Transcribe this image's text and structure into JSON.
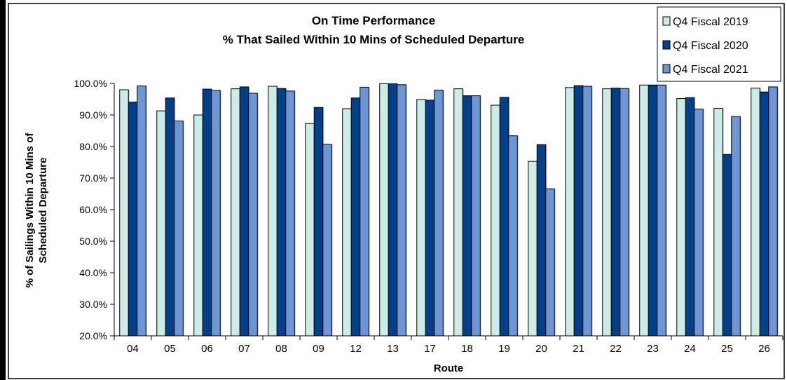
{
  "chart_data": {
    "type": "bar",
    "title": "On Time Performance",
    "subtitle": "% That Sailed Within 10 Mins of Scheduled Departure",
    "xlabel": "Route",
    "ylabel_line1": "% of Sailings Within 10 Mins of",
    "ylabel_line2": "Scheduled Departure",
    "ylim": [
      20,
      100
    ],
    "yticks": [
      20,
      30,
      40,
      50,
      60,
      70,
      80,
      90,
      100
    ],
    "ytick_labels": [
      "20.0%",
      "30.0%",
      "40.0%",
      "50.0%",
      "60.0%",
      "70.0%",
      "80.0%",
      "90.0%",
      "100.0%"
    ],
    "grid": false,
    "legend_position": "top-right",
    "categories": [
      "04",
      "05",
      "06",
      "07",
      "08",
      "09",
      "12",
      "13",
      "17",
      "18",
      "19",
      "20",
      "21",
      "22",
      "23",
      "24",
      "25",
      "26"
    ],
    "series": [
      {
        "name": "Q4 Fiscal 2019",
        "color": "#ccece6",
        "values": [
          98.0,
          91.3,
          90.0,
          98.3,
          99.1,
          87.3,
          92.0,
          99.9,
          94.9,
          98.3,
          93.1,
          75.3,
          98.7,
          98.3,
          99.5,
          95.2,
          92.1,
          98.5
        ]
      },
      {
        "name": "Q4 Fiscal 2020",
        "color": "#003f8a",
        "values": [
          94.1,
          95.4,
          98.2,
          98.9,
          98.4,
          92.4,
          95.4,
          99.9,
          94.7,
          96.1,
          95.6,
          80.6,
          99.3,
          98.5,
          99.5,
          95.5,
          77.5,
          97.3
        ]
      },
      {
        "name": "Q4 Fiscal 2021",
        "color": "#6c96d6",
        "values": [
          99.2,
          88.1,
          97.8,
          96.9,
          97.6,
          80.7,
          98.8,
          99.6,
          97.9,
          96.1,
          83.4,
          66.6,
          99.1,
          98.4,
          99.5,
          91.9,
          89.5,
          98.9
        ]
      }
    ]
  }
}
